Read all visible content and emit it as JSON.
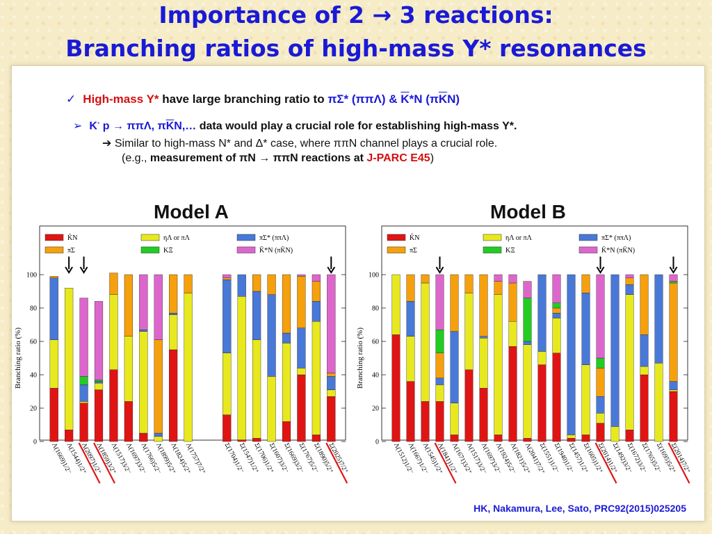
{
  "slide": {
    "title_line1": "Importance of 2 → 3 reactions:",
    "title_line2": "Branching ratios of high-mass Y* resonances",
    "bullet1": {
      "red": "High-mass Y*",
      "mid": " have large branching ratio to ",
      "blue1": "πΣ* (ππΛ) & ",
      "kbar": "K",
      "blue2": "*N (π",
      "kbar2": "K",
      "blue3": "N)"
    },
    "bullet2": {
      "blue": "K",
      "sup": "-",
      "blue_b": " p → ππΛ, π",
      "kbar": "K",
      "blue_c": "N,…",
      "rest": " data would play a crucial role for establishing high-mass Y*."
    },
    "line3": "➔ Similar to high-mass N* and Δ* case, where ππN channel plays a crucial role.",
    "line4": {
      "pre": "(e.g., ",
      "bold": "measurement of πN → ππN reactions at ",
      "red": "J-PARC E45",
      "post": ")"
    },
    "reference": "HK, Nakamura, Lee, Sato, PRC92(2015)025205"
  },
  "chart_data": [
    {
      "type": "bar",
      "stacked": true,
      "title": "Model A",
      "ylabel": "Branching ratio (%)",
      "ylim": [
        0,
        100
      ],
      "yticks": [
        0,
        20,
        40,
        60,
        80,
        100
      ],
      "legend": [
        {
          "name": "K̄N",
          "color": "#e11414"
        },
        {
          "name": "ηΛ or πΛ",
          "color": "#e8e81e"
        },
        {
          "name": "πΣ* (ππΛ)",
          "color": "#4878d8"
        },
        {
          "name": "πΣ",
          "color": "#f5a00c"
        },
        {
          "name": "KΞ",
          "color": "#22cc22"
        },
        {
          "name": "K̄*N (πK̄N)",
          "color": "#dd66cc"
        }
      ],
      "categories": [
        "Λ(1669)1/2⁻",
        "Λ(1544)1/2⁺",
        "Λ(2097)1/2⁺",
        "Λ(1859)3/2⁺",
        "Λ(1517)3/2⁻",
        "Λ(1697)3/2⁻",
        "Λ(1766)5/2⁻",
        "Λ(1899)5/2⁺",
        "Λ(1824)5/2⁺",
        "Λ(1757)7/2⁺",
        "Σ(1704)1/2⁻",
        "Σ(1547)1/2⁺",
        "Σ(1706)1/2⁺",
        "Σ(1607)3/2⁻",
        "Σ(1669)3/2⁻",
        "Σ(1767)5/2⁻",
        "Σ(1890)5/2⁺",
        "Σ(2025)7/2⁺"
      ],
      "underlined": [
        2,
        3,
        17
      ],
      "arrows": [
        1,
        2,
        17
      ],
      "gap_after": 9,
      "stacks": [
        [
          32,
          29,
          37,
          1,
          0,
          0
        ],
        [
          7,
          85,
          0,
          0,
          0,
          0
        ],
        [
          23,
          1,
          10,
          0,
          5,
          47
        ],
        [
          31,
          4,
          1,
          0,
          1,
          47
        ],
        [
          43,
          45,
          0,
          13,
          0,
          0
        ],
        [
          24,
          39,
          0,
          37,
          0,
          0
        ],
        [
          5,
          61,
          1,
          0,
          0,
          33
        ],
        [
          0,
          3,
          2,
          56,
          0,
          39
        ],
        [
          55,
          21,
          1,
          23,
          0,
          0
        ],
        [
          0,
          89,
          0,
          11,
          0,
          0
        ],
        [
          16,
          37,
          44,
          1,
          0,
          2
        ],
        [
          1,
          86,
          13,
          0,
          0,
          0
        ],
        [
          2,
          59,
          29,
          10,
          0,
          0
        ],
        [
          0,
          39,
          49,
          12,
          0,
          0
        ],
        [
          12,
          47,
          6,
          35,
          0,
          0
        ],
        [
          40,
          4,
          24,
          31,
          0,
          1
        ],
        [
          4,
          68,
          12,
          12,
          0,
          4
        ],
        [
          27,
          4,
          8,
          2,
          0,
          59
        ]
      ]
    },
    {
      "type": "bar",
      "stacked": true,
      "title": "Model B",
      "ylabel": "Branching ratio (%)",
      "ylim": [
        0,
        100
      ],
      "yticks": [
        0,
        20,
        40,
        60,
        80,
        100
      ],
      "legend": [
        {
          "name": "K̄N",
          "color": "#e11414"
        },
        {
          "name": "ηΛ or πΛ",
          "color": "#e8e81e"
        },
        {
          "name": "πΣ* (ππΛ)",
          "color": "#4878d8"
        },
        {
          "name": "πΣ",
          "color": "#f5a00c"
        },
        {
          "name": "KΞ",
          "color": "#22cc22"
        },
        {
          "name": "K̄*N (πK̄N)",
          "color": "#dd66cc"
        }
      ],
      "categories": [
        "Λ(1512)1/2⁻",
        "Λ(1667)1/2⁻",
        "Λ(1545)1/2⁺",
        "Λ(1841)1/2⁺",
        "Λ(1671)3/2⁺",
        "Λ(1517)3/2⁻",
        "Λ(1697)3/2⁻",
        "Λ(1924)5/2⁻",
        "Λ(1821)5/2⁺",
        "Λ(2041)7/2⁺",
        "Σ(1551)1/2⁻",
        "Σ(1940)1/2⁻",
        "Σ(1457)1/2⁺",
        "Σ(1605)1/2⁺",
        "Σ(2014)1/2⁺",
        "Σ(1492)3/2⁻",
        "Σ(1672)3/2⁻",
        "Σ(1765)5/2⁻",
        "Σ(1695)5/2⁺",
        "Σ(2014)7/2⁺"
      ],
      "underlined": [
        3,
        14,
        19
      ],
      "arrows": [
        3,
        14,
        19
      ],
      "gap_after": null,
      "stacks": [
        [
          64,
          36,
          0,
          0,
          0,
          0
        ],
        [
          36,
          27,
          21,
          16,
          0,
          0
        ],
        [
          24,
          71,
          0,
          5,
          0,
          0
        ],
        [
          24,
          10,
          4,
          15,
          14,
          33
        ],
        [
          4,
          19,
          43,
          34,
          0,
          0
        ],
        [
          43,
          46,
          0,
          11,
          0,
          0
        ],
        [
          32,
          30,
          1,
          37,
          0,
          0
        ],
        [
          4,
          84,
          0,
          8,
          0,
          4
        ],
        [
          57,
          15,
          0,
          23,
          0,
          5
        ],
        [
          2,
          56,
          2,
          0,
          26,
          10
        ],
        [
          46,
          8,
          46,
          0,
          0,
          0
        ],
        [
          53,
          21,
          3,
          3,
          3,
          17
        ],
        [
          2,
          2,
          96,
          0,
          0,
          0
        ],
        [
          4,
          42,
          43,
          11,
          0,
          0
        ],
        [
          11,
          6,
          10,
          17,
          6,
          50
        ],
        [
          0,
          9,
          91,
          0,
          0,
          0
        ],
        [
          7,
          81,
          6,
          4,
          0,
          2
        ],
        [
          40,
          5,
          19,
          36,
          0,
          0
        ],
        [
          0,
          47,
          53,
          0,
          0,
          0
        ],
        [
          30,
          1,
          5,
          59,
          1,
          4
        ]
      ]
    }
  ]
}
